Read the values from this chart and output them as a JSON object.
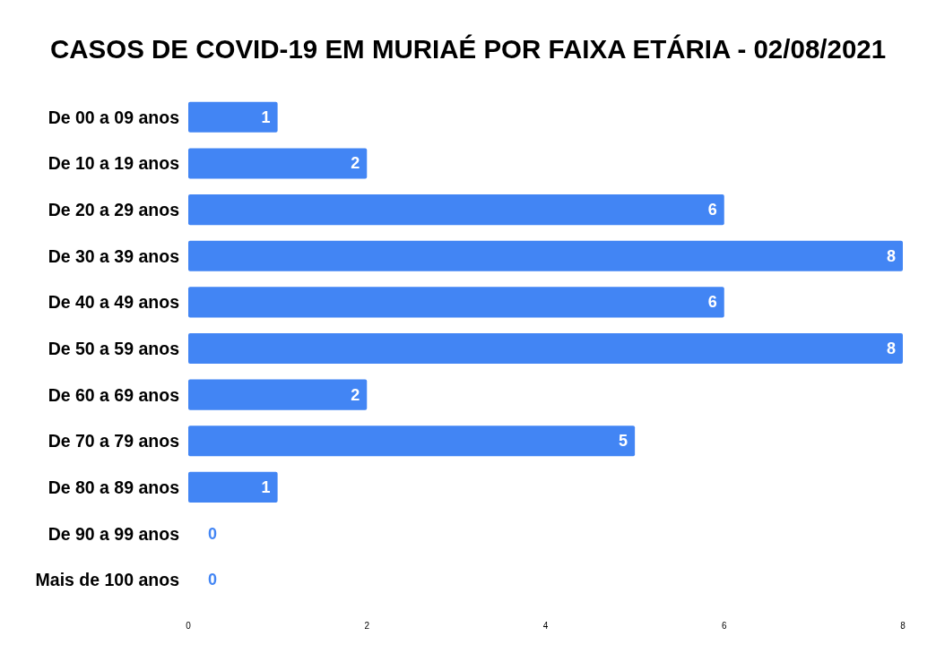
{
  "chart_data": {
    "type": "bar",
    "orientation": "horizontal",
    "title": "CASOS DE COVID-19 EM MURIAÉ POR FAIXA ETÁRIA - 02/08/2021",
    "categories": [
      "De 00 a 09 anos",
      "De 10 a 19 anos",
      "De 20 a 29 anos",
      "De 30 a 39 anos",
      "De 40 a 49 anos",
      "De 50 a 59 anos",
      "De 60 a 69 anos",
      "De 70 a 79 anos",
      "De 80 a 89 anos",
      "De 90 a 99 anos",
      "Mais de 100 anos"
    ],
    "values": [
      1,
      2,
      6,
      8,
      6,
      8,
      2,
      5,
      1,
      0,
      0
    ],
    "color": "#4285f4",
    "xlim": [
      0,
      8
    ],
    "xticks": [
      0,
      2,
      4,
      6,
      8
    ],
    "grid": false,
    "data_labels": true
  }
}
